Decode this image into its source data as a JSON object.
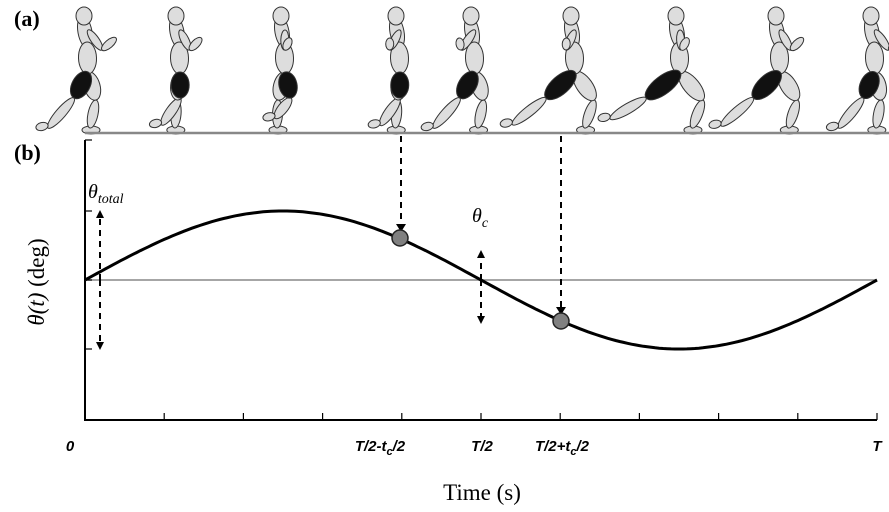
{
  "panel_labels": [
    "(a)",
    "(b)"
  ],
  "theta_total": {
    "symbol": "θ",
    "subscript": "total"
  },
  "theta_c": {
    "symbol": "θ",
    "subscript": "c"
  },
  "y_axis_label": {
    "symbol": "θ(t)",
    "unit": "(deg)"
  },
  "x_axis_label": "Time (s)",
  "x_tick_labels": [
    {
      "parts": [
        "0"
      ]
    },
    {
      "parts": [
        "T/2-t",
        "c",
        "/2"
      ]
    },
    {
      "parts": [
        "T/2"
      ]
    },
    {
      "parts": [
        "T/2+t",
        "c",
        "/2"
      ]
    },
    {
      "parts": [
        "T"
      ]
    }
  ]
}
